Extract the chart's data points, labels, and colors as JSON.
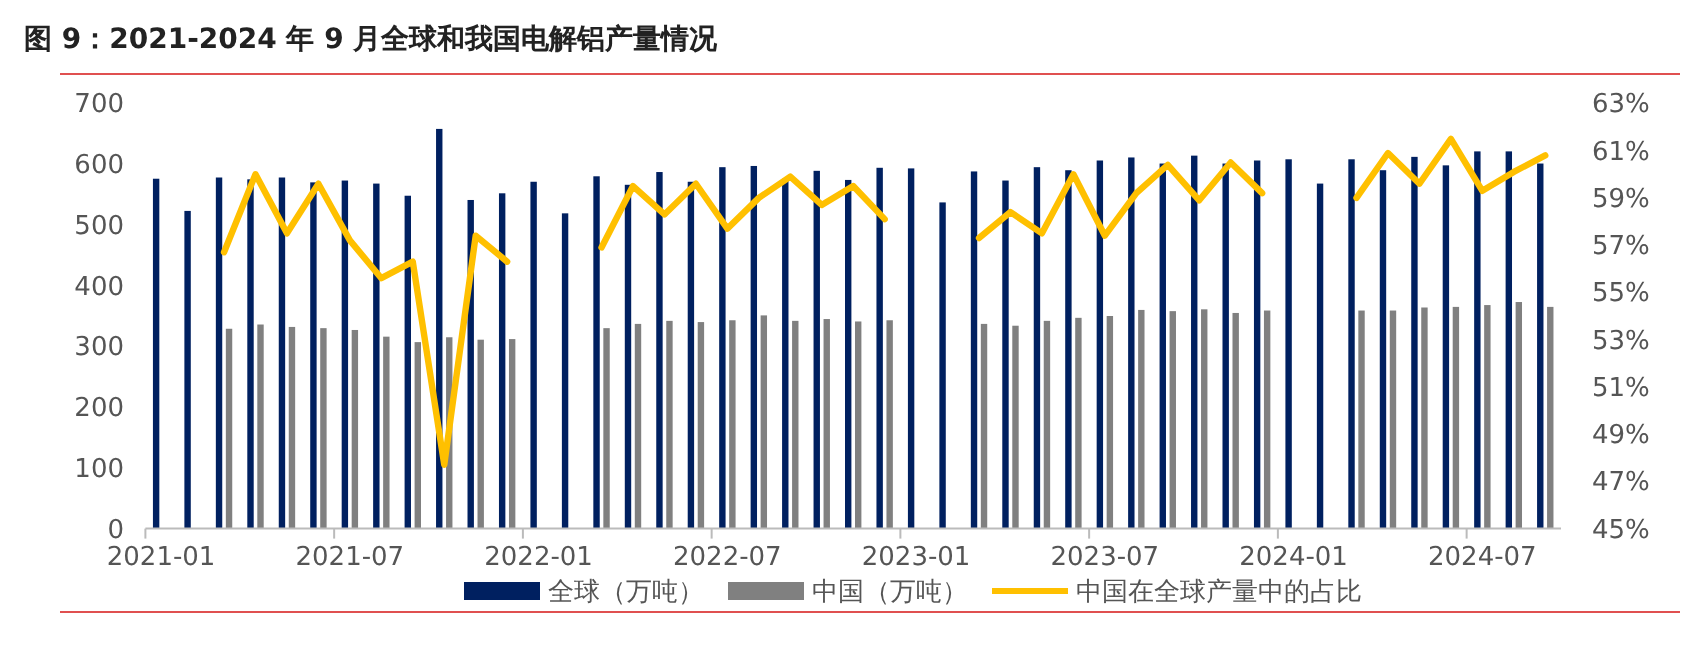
{
  "chart_data": {
    "type": "bar",
    "title": "图 9：2021-2024 年 9 月全球和我国电解铝产量情况",
    "categories": [
      "2021-01",
      null,
      null,
      null,
      null,
      null,
      "2021-07",
      null,
      null,
      null,
      null,
      null,
      "2022-01",
      null,
      null,
      null,
      null,
      null,
      "2022-07",
      null,
      null,
      null,
      null,
      null,
      "2023-01",
      null,
      null,
      null,
      null,
      null,
      "2023-07",
      null,
      null,
      null,
      null,
      null,
      "2024-01",
      null,
      null,
      null,
      null,
      null,
      "2024-07",
      null,
      null
    ],
    "series": [
      {
        "name": "全球（万吨）",
        "color": "#002060",
        "values": [
          576,
          523,
          578,
          575,
          578,
          570,
          573,
          568,
          548,
          658,
          541,
          552,
          571,
          519,
          580,
          566,
          587,
          571,
          595,
          597,
          576,
          589,
          574,
          594,
          593,
          537,
          588,
          573,
          595,
          590,
          606,
          611,
          601,
          614,
          601,
          606,
          608,
          568,
          608,
          590,
          612,
          598,
          621,
          621,
          601
        ]
      },
      {
        "name": "中国（万吨）",
        "color": "#808080",
        "values": [
          null,
          null,
          329,
          336,
          332,
          330,
          327,
          316,
          307,
          315,
          311,
          312,
          null,
          null,
          330,
          337,
          342,
          340,
          343,
          351,
          342,
          345,
          341,
          343,
          null,
          null,
          337,
          334,
          342,
          347,
          350,
          360,
          358,
          361,
          355,
          359,
          null,
          null,
          359,
          359,
          364,
          365,
          368,
          373,
          365
        ]
      },
      {
        "name": "中国在全球产量中的占比",
        "type": "line",
        "axis": "y2",
        "color": "#ffc000",
        "values": [
          null,
          null,
          56.7,
          60.0,
          57.5,
          59.6,
          57.2,
          55.6,
          56.3,
          47.7,
          57.4,
          56.3,
          null,
          null,
          56.9,
          59.5,
          58.3,
          59.6,
          57.7,
          59.0,
          59.9,
          58.7,
          59.5,
          58.1,
          null,
          null,
          57.3,
          58.4,
          57.5,
          60.0,
          57.4,
          59.2,
          60.4,
          58.9,
          60.5,
          59.2,
          null,
          null,
          59.0,
          60.9,
          59.6,
          61.5,
          59.3,
          60.1,
          60.8
        ]
      }
    ],
    "ylim": [
      0,
      700
    ],
    "yticks": [
      0,
      100,
      200,
      300,
      400,
      500,
      600,
      700
    ],
    "y2lim": [
      45,
      63
    ],
    "y2ticks": [
      {
        "value": 45,
        "label": "45%"
      },
      {
        "value": 47,
        "label": "47%"
      },
      {
        "value": 49,
        "label": "49%"
      },
      {
        "value": 51,
        "label": "51%"
      },
      {
        "value": 53,
        "label": "53%"
      },
      {
        "value": 55,
        "label": "55%"
      },
      {
        "value": 57,
        "label": "57%"
      },
      {
        "value": 59,
        "label": "59%"
      },
      {
        "value": 61,
        "label": "61%"
      },
      {
        "value": 63,
        "label": "63%"
      }
    ],
    "grid": false,
    "legend": "bottom"
  }
}
